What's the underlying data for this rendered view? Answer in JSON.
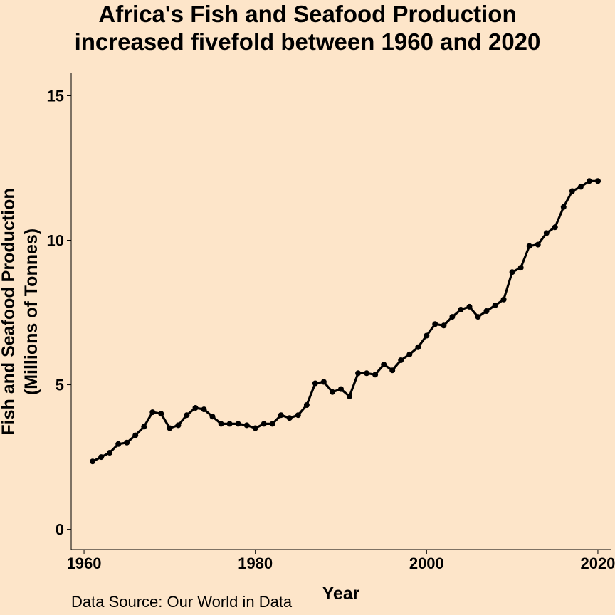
{
  "chart_data": {
    "type": "line",
    "title_lines": [
      "Africa's Fish and Seafood Production",
      "increased fivefold between 1960 and 2020"
    ],
    "xlabel": "Year",
    "ylabel_lines": [
      "Fish and Seafood Production",
      "(Millions of Tonnes)"
    ],
    "caption": "Data Source: Our World in Data",
    "xlim": [
      1958.5,
      2021.5
    ],
    "ylim": [
      -0.7,
      15.8
    ],
    "xticks": [
      1960,
      1980,
      2000,
      2020
    ],
    "yticks": [
      0,
      5,
      10,
      15
    ],
    "grid": false,
    "series": [
      {
        "color": "#000000",
        "x": [
          1961,
          1962,
          1963,
          1964,
          1965,
          1966,
          1967,
          1968,
          1969,
          1970,
          1971,
          1972,
          1973,
          1974,
          1975,
          1976,
          1977,
          1978,
          1979,
          1980,
          1981,
          1982,
          1983,
          1984,
          1985,
          1986,
          1987,
          1988,
          1989,
          1990,
          1991,
          1992,
          1993,
          1994,
          1995,
          1996,
          1997,
          1998,
          1999,
          2000,
          2001,
          2002,
          2003,
          2004,
          2005,
          2006,
          2007,
          2008,
          2009,
          2010,
          2011,
          2012,
          2013,
          2014,
          2015,
          2016,
          2017,
          2018,
          2019,
          2020
        ],
        "y": [
          2.35,
          2.5,
          2.65,
          2.95,
          3.0,
          3.25,
          3.55,
          4.05,
          4.0,
          3.5,
          3.6,
          3.95,
          4.2,
          4.15,
          3.9,
          3.65,
          3.65,
          3.65,
          3.6,
          3.5,
          3.65,
          3.65,
          3.95,
          3.85,
          3.95,
          4.3,
          5.05,
          5.1,
          4.75,
          4.85,
          4.6,
          5.4,
          5.4,
          5.35,
          5.7,
          5.5,
          5.85,
          6.05,
          6.3,
          6.7,
          7.1,
          7.05,
          7.35,
          7.6,
          7.7,
          7.35,
          7.55,
          7.75,
          7.95,
          8.9,
          9.05,
          9.8,
          9.85,
          10.25,
          10.45,
          11.15,
          11.7,
          11.85,
          12.05,
          12.05
        ]
      }
    ]
  }
}
